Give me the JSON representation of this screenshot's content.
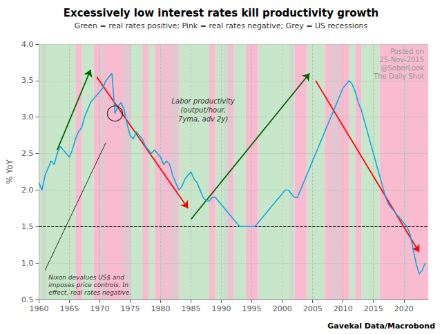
{
  "chart_data": {
    "type": "line",
    "title": "Excessively low interest rates kill productivity growth",
    "subtitle": "Green = real rates positive; Pink = real rates negative; Grey = US recessions",
    "ylabel": "% YoY",
    "source": "Gavekal Data/Macrobond",
    "watermarks": [
      "Posted on",
      "25-Nov-2015",
      "@SoberLook",
      "The Daily Shot"
    ],
    "x": [
      1960.0,
      1960.5,
      1961.0,
      1961.5,
      1962.0,
      1962.5,
      1963.0,
      1963.5,
      1964.0,
      1964.5,
      1965.0,
      1965.5,
      1966.0,
      1966.5,
      1967.0,
      1967.5,
      1968.0,
      1968.5,
      1969.0,
      1969.5,
      1970.0,
      1970.5,
      1971.0,
      1971.5,
      1972.0,
      1972.5,
      1973.0,
      1973.5,
      1974.0,
      1974.5,
      1975.0,
      1975.5,
      1976.0,
      1976.5,
      1977.0,
      1977.5,
      1978.0,
      1978.5,
      1979.0,
      1979.5,
      1980.0,
      1980.5,
      1981.0,
      1981.5,
      1982.0,
      1982.5,
      1983.0,
      1983.5,
      1984.0,
      1984.5,
      1985.0,
      1985.5,
      1986.0,
      1986.5,
      1987.0,
      1987.5,
      1988.0,
      1988.5,
      1989.0,
      1989.5,
      1990.0,
      1990.5,
      1991.0,
      1991.5,
      1992.0,
      1992.5,
      1993.0,
      1993.5,
      1994.0,
      1994.5,
      1995.0,
      1995.5,
      1996.0,
      1996.5,
      1997.0,
      1997.5,
      1998.0,
      1998.5,
      1999.0,
      1999.5,
      2000.0,
      2000.5,
      2001.0,
      2001.5,
      2002.0,
      2002.5,
      2003.0,
      2003.5,
      2004.0,
      2004.5,
      2005.0,
      2005.5,
      2006.0,
      2006.5,
      2007.0,
      2007.5,
      2008.0,
      2008.5,
      2009.0,
      2009.5,
      2010.0,
      2010.5,
      2011.0,
      2011.5,
      2012.0,
      2012.5,
      2013.0,
      2013.5,
      2014.0,
      2014.5,
      2015.0,
      2015.5,
      2016.0,
      2016.5,
      2017.0,
      2017.5,
      2018.0,
      2018.5,
      2019.0,
      2019.5,
      2020.0,
      2020.5,
      2021.0,
      2021.5,
      2022.0,
      2022.5,
      2023.0,
      2023.5
    ],
    "values": [
      2.1,
      2.0,
      2.2,
      2.3,
      2.4,
      2.35,
      2.5,
      2.6,
      2.55,
      2.5,
      2.45,
      2.55,
      2.7,
      2.8,
      2.85,
      3.0,
      3.1,
      3.2,
      3.25,
      3.3,
      3.35,
      3.4,
      3.5,
      3.55,
      3.6,
      3.05,
      3.15,
      3.2,
      3.1,
      2.9,
      2.75,
      2.7,
      2.8,
      2.75,
      2.7,
      2.6,
      2.55,
      2.5,
      2.55,
      2.5,
      2.45,
      2.35,
      2.4,
      2.35,
      2.2,
      2.1,
      2.0,
      2.05,
      2.15,
      2.2,
      2.25,
      2.15,
      2.1,
      2.0,
      1.9,
      1.85,
      1.85,
      1.9,
      1.9,
      1.85,
      1.8,
      1.75,
      1.7,
      1.65,
      1.6,
      1.55,
      1.5,
      1.5,
      1.5,
      1.5,
      1.5,
      1.5,
      1.55,
      1.6,
      1.65,
      1.7,
      1.75,
      1.8,
      1.85,
      1.9,
      1.95,
      2.0,
      2.0,
      1.95,
      1.9,
      1.9,
      2.0,
      2.1,
      2.2,
      2.3,
      2.4,
      2.5,
      2.6,
      2.7,
      2.8,
      2.9,
      3.0,
      3.1,
      3.2,
      3.3,
      3.4,
      3.45,
      3.5,
      3.45,
      3.35,
      3.2,
      3.1,
      2.95,
      2.8,
      2.65,
      2.5,
      2.35,
      2.2,
      2.05,
      1.9,
      1.8,
      1.75,
      1.7,
      1.65,
      1.6,
      1.55,
      1.5,
      1.4,
      1.2,
      1.0,
      0.85,
      0.9,
      1.0
    ],
    "xlim": [
      1960,
      2024
    ],
    "ylim": [
      0.5,
      4.0
    ],
    "xticks": [
      1960,
      1965,
      1970,
      1975,
      1980,
      1985,
      1990,
      1995,
      2000,
      2005,
      2010,
      2015,
      2020
    ],
    "yticks": [
      0.5,
      {
        "value": 1.0,
        "label": "1.0"
      },
      1.5,
      {
        "value": 2.0,
        "label": "2.0"
      },
      2.5,
      {
        "value": 3.0,
        "label": "3.0"
      },
      3.5,
      {
        "value": 4.0,
        "label": "4.0"
      }
    ],
    "grid": true,
    "hline": {
      "y": 1.5,
      "line_style": "dashed"
    },
    "regions": [
      {
        "color": "#c8e6c9",
        "spans": [
          [
            1960,
            1966
          ],
          [
            1967,
            1969
          ],
          [
            1975,
            1977
          ],
          [
            1978,
            1979
          ],
          [
            1983,
            1988
          ],
          [
            1989,
            1991
          ],
          [
            1992,
            1994
          ],
          [
            1996,
            2000
          ],
          [
            2000,
            2002
          ],
          [
            2004,
            2007
          ],
          [
            2011,
            2012
          ],
          [
            2013,
            2016
          ]
        ]
      },
      {
        "color": "#f8bbd0",
        "spans": [
          [
            1966,
            1967
          ],
          [
            1969,
            1975
          ],
          [
            1977,
            1978
          ],
          [
            1979,
            1983
          ],
          [
            1988,
            1989
          ],
          [
            1991,
            1992
          ],
          [
            1994,
            1996
          ],
          [
            2002,
            2004
          ],
          [
            2007,
            2011
          ],
          [
            2012,
            2013
          ],
          [
            2016,
            2024
          ]
        ]
      },
      {
        "color": "#d0d0d0",
        "spans": [
          [
            1960.5,
            1961.2
          ],
          [
            1969.9,
            1970.8
          ],
          [
            1973.8,
            1975.2
          ],
          [
            1980.0,
            1980.7
          ],
          [
            1981.5,
            1982.9
          ],
          [
            1990.5,
            1991.4
          ],
          [
            2001.2,
            2001.9
          ],
          [
            2007.9,
            2009.5
          ],
          [
            2020.0,
            2020.5
          ]
        ]
      }
    ],
    "arrows": [
      {
        "from": [
          1963,
          2.55
        ],
        "to": [
          1968.5,
          3.65
        ],
        "color": "darkgreen"
      },
      {
        "from": [
          1969.5,
          3.55
        ],
        "to": [
          1984.5,
          1.75
        ],
        "color": "red"
      },
      {
        "from": [
          1985,
          1.6
        ],
        "to": [
          2004.5,
          3.6
        ],
        "color": "darkgreen"
      },
      {
        "from": [
          2005.5,
          3.5
        ],
        "to": [
          2022.5,
          1.15
        ],
        "color": "red"
      }
    ],
    "circle": [
      1972.5,
      3.05
    ],
    "annotations": [
      {
        "text": "Nixon devalues US$ and\nimposes price controls. In\neffect, real rates negative.",
        "x": 1961,
        "y": 0.9,
        "arrow_to": [
          1971,
          2.65
        ]
      },
      {
        "text": "Labor productivity\n(output/hour,\n7yma, adv 2y)",
        "x": 1987,
        "y": 3.1
      }
    ]
  }
}
